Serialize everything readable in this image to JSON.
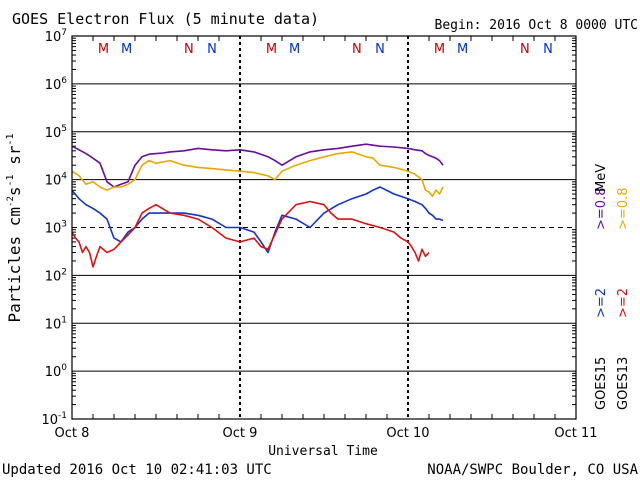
{
  "chart_data": {
    "type": "line",
    "title": "GOES Electron Flux (5 minute data)",
    "begin_label": "Begin: 2016 Oct 8 0000 UTC",
    "xlabel": "Universal Time",
    "ylabel": "Particles cm-2s-1sr-1",
    "ylabel_parts": {
      "base": "Particles cm",
      "e1": "-2",
      "mid": "s",
      "e2": "-1",
      "mid2": " sr",
      "e3": "-1"
    },
    "yscale": "log",
    "ylim": [
      0.1,
      10000000
    ],
    "y_ticks": [
      {
        "value": 0.1,
        "base": "10",
        "exp": "-1"
      },
      {
        "value": 1,
        "base": "10",
        "exp": "0"
      },
      {
        "value": 10,
        "base": "10",
        "exp": "1"
      },
      {
        "value": 100,
        "base": "10",
        "exp": "2"
      },
      {
        "value": 1000,
        "base": "10",
        "exp": "3"
      },
      {
        "value": 10000,
        "base": "10",
        "exp": "4"
      },
      {
        "value": 100000,
        "base": "10",
        "exp": "5"
      },
      {
        "value": 1000000,
        "base": "10",
        "exp": "6"
      },
      {
        "value": 10000000,
        "base": "10",
        "exp": "7"
      }
    ],
    "x_unit": "hours since 2016 Oct 8 0000 UTC",
    "xlim": [
      0,
      72
    ],
    "x_ticks": [
      {
        "value": 0,
        "label": "Oct 8"
      },
      {
        "value": 24,
        "label": "Oct 9"
      },
      {
        "value": 48,
        "label": "Oct 10"
      },
      {
        "value": 72,
        "label": "Oct 11"
      }
    ],
    "grid": true,
    "threshold": {
      "value": 1000,
      "style": "dashed"
    },
    "midnight_markers": [
      {
        "hour": 4.5,
        "label": "M",
        "color": "#cc0000"
      },
      {
        "hour": 7.8,
        "label": "M",
        "color": "#0033cc"
      },
      {
        "hour": 16.7,
        "label": "N",
        "color": "#cc0000"
      },
      {
        "hour": 20.0,
        "label": "N",
        "color": "#0033cc"
      },
      {
        "hour": 28.5,
        "label": "M",
        "color": "#cc0000"
      },
      {
        "hour": 31.8,
        "label": "M",
        "color": "#0033cc"
      },
      {
        "hour": 40.7,
        "label": "N",
        "color": "#cc0000"
      },
      {
        "hour": 44.0,
        "label": "N",
        "color": "#0033cc"
      },
      {
        "hour": 52.5,
        "label": "M",
        "color": "#cc0000"
      },
      {
        "hour": 55.8,
        "label": "M",
        "color": "#0033cc"
      },
      {
        "hour": 64.7,
        "label": "N",
        "color": "#cc0000"
      },
      {
        "hour": 68.0,
        "label": "N",
        "color": "#0033cc"
      }
    ],
    "legend": {
      "placement": "right",
      "groups": [
        {
          "satellite": "GOES13",
          "items": [
            {
              "label": ">=2",
              "color": "#dd1111"
            },
            {
              "label": ">=0.8",
              "color": "#e8a800"
            }
          ]
        },
        {
          "satellite": "GOES15",
          "items": [
            {
              "label": ">=2",
              "color": "#1133cc"
            },
            {
              "label": ">=0.8",
              "color": "#6a0d9c"
            }
          ]
        }
      ],
      "unit": "MeV"
    },
    "series": [
      {
        "name": "GOES15 >=0.8 MeV",
        "color": "#6a0d9c",
        "x": [
          0,
          1,
          2,
          3,
          4,
          5,
          6,
          7,
          8,
          9,
          10,
          11,
          12,
          13,
          14,
          16,
          18,
          20,
          22,
          24,
          26,
          28,
          29,
          30,
          32,
          34,
          36,
          38,
          40,
          42,
          44,
          46,
          48,
          49,
          50,
          50.5,
          51,
          51.5,
          52,
          52.5,
          53
        ],
        "y": [
          50000,
          42000,
          35000,
          28000,
          22000,
          9000,
          7000,
          8000,
          9000,
          20000,
          30000,
          34000,
          35000,
          36000,
          38000,
          40000,
          45000,
          42000,
          40000,
          42000,
          38000,
          30000,
          25000,
          20000,
          30000,
          38000,
          42000,
          45000,
          50000,
          55000,
          50000,
          48000,
          45000,
          42000,
          40000,
          35000,
          32000,
          30000,
          28000,
          25000,
          20000
        ]
      },
      {
        "name": "GOES13 >=0.8 MeV",
        "color": "#e8a800",
        "x": [
          0,
          1,
          2,
          3,
          4,
          5,
          6,
          7,
          8,
          9,
          10,
          11,
          12,
          14,
          16,
          18,
          20,
          22,
          24,
          26,
          28,
          29,
          30,
          32,
          34,
          36,
          38,
          40,
          42,
          43,
          44,
          46,
          48,
          49,
          50,
          50.5,
          51,
          51.5,
          52,
          52.5,
          53
        ],
        "y": [
          15000,
          12000,
          8000,
          9000,
          7000,
          6000,
          7000,
          7000,
          8000,
          10000,
          20000,
          25000,
          22000,
          25000,
          20000,
          18000,
          17000,
          16000,
          15000,
          14000,
          12000,
          10000,
          15000,
          20000,
          25000,
          30000,
          35000,
          38000,
          30000,
          28000,
          20000,
          18000,
          15000,
          13000,
          10000,
          6000,
          5500,
          4500,
          6000,
          5000,
          7000
        ]
      },
      {
        "name": "GOES15 >=2 MeV",
        "color": "#1133cc",
        "x": [
          0,
          1,
          2,
          3,
          4,
          5,
          6,
          7,
          8,
          9,
          10,
          11,
          12,
          14,
          16,
          18,
          20,
          22,
          24,
          26,
          27,
          28,
          29,
          30,
          32,
          34,
          36,
          38,
          40,
          42,
          43,
          44,
          46,
          48,
          49,
          50,
          50.5,
          51,
          51.5,
          52,
          52.5,
          53
        ],
        "y": [
          6000,
          4000,
          3000,
          2500,
          2000,
          1500,
          600,
          500,
          800,
          1000,
          1500,
          2000,
          2000,
          2000,
          2000,
          1800,
          1500,
          1000,
          1000,
          800,
          500,
          300,
          800,
          1800,
          1500,
          1000,
          2000,
          3000,
          4000,
          5000,
          6000,
          7000,
          5000,
          4000,
          3500,
          3000,
          2500,
          2000,
          1800,
          1500,
          1500,
          1400
        ]
      },
      {
        "name": "GOES13 >=2 MeV",
        "color": "#dd1111",
        "x": [
          0,
          0.5,
          1,
          1.5,
          2,
          2.5,
          3,
          3.5,
          4,
          5,
          6,
          7,
          8,
          9,
          10,
          11,
          12,
          14,
          16,
          18,
          20,
          22,
          24,
          26,
          27,
          28,
          30,
          32,
          34,
          36,
          37,
          38,
          40,
          42,
          44,
          46,
          47,
          48,
          48.5,
          49,
          49.5,
          50,
          50.5,
          51
        ],
        "y": [
          800,
          600,
          500,
          300,
          400,
          300,
          150,
          250,
          400,
          300,
          350,
          500,
          700,
          1000,
          2000,
          2500,
          3000,
          2000,
          1800,
          1500,
          1000,
          600,
          500,
          600,
          400,
          350,
          1500,
          3000,
          3500,
          3000,
          2000,
          1500,
          1500,
          1200,
          1000,
          800,
          600,
          500,
          400,
          300,
          200,
          350,
          250,
          300
        ]
      }
    ],
    "footer_left": "Updated 2016 Oct 10 02:41:03 UTC",
    "footer_right": "NOAA/SWPC Boulder, CO USA"
  }
}
